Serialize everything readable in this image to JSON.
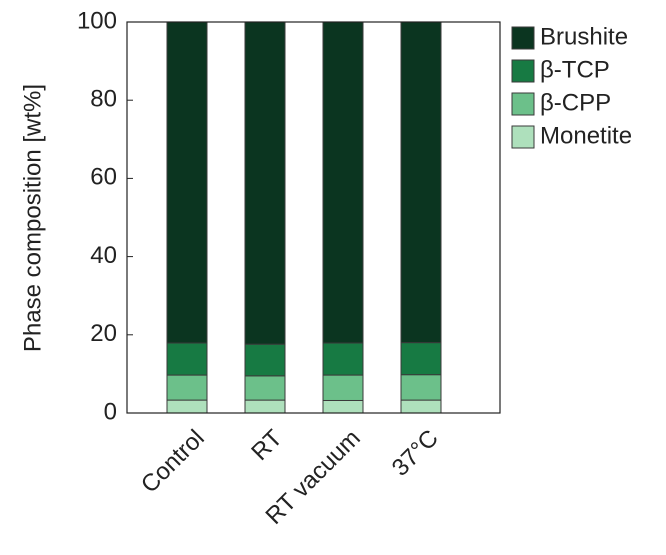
{
  "chart_data": {
    "type": "stacked_bar",
    "ylabel": "Phase composition [wt%]",
    "categories": [
      "Control",
      "RT",
      "RT vacuum",
      "37°C"
    ],
    "series": [
      {
        "name": "Monetite",
        "color": "#aee0bc",
        "values": [
          3.3,
          3.3,
          3.2,
          3.3
        ]
      },
      {
        "name": "β-CPP",
        "color": "#6cc08a",
        "values": [
          6.4,
          6.2,
          6.5,
          6.5
        ]
      },
      {
        "name": "β-TCP",
        "color": "#177a43",
        "values": [
          8.2,
          8.1,
          8.2,
          8.2
        ]
      },
      {
        "name": "Brushite",
        "color": "#0b3520",
        "values": [
          82.1,
          82.4,
          82.1,
          82.0
        ]
      }
    ],
    "ylim": [
      0,
      100
    ],
    "yticks": [
      0,
      20,
      40,
      60,
      80,
      100
    ]
  }
}
